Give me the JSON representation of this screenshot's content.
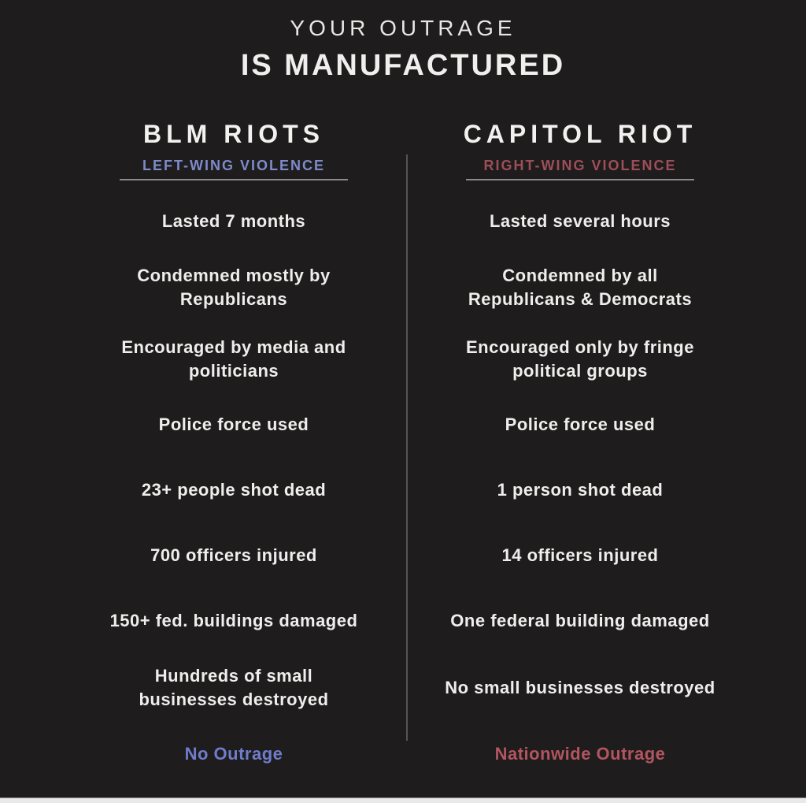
{
  "title": {
    "line1": "YOUR OUTRAGE",
    "line2": "IS MANUFACTURED"
  },
  "columns": {
    "left": {
      "header": "BLM RIOTS",
      "subtitle": "LEFT-WING VIOLENCE",
      "rows": [
        "Lasted 7 months",
        "Condemned mostly by\nRepublicans",
        "Encouraged by media and\npoliticians",
        "Police force used",
        "23+ people shot dead",
        "700 officers injured",
        "150+ fed. buildings damaged",
        "Hundreds of small\nbusinesses destroyed"
      ],
      "footer": "No Outrage"
    },
    "right": {
      "header": "CAPITOL RIOT",
      "subtitle": "RIGHT-WING VIOLENCE",
      "rows": [
        "Lasted several hours",
        "Condemned by all\nRepublicans & Democrats",
        "Encouraged only by fringe\npolitical groups",
        "Police force used",
        "1 person shot dead",
        "14 officers injured",
        "One federal building damaged",
        "No small businesses destroyed"
      ],
      "footer": "Nationwide Outrage"
    }
  },
  "colors": {
    "background": "#1e1c1c",
    "text": "#efeeec",
    "left_accent": "#7e8bca",
    "left_footer_accent": "#6f7ccc",
    "right_accent": "#9d4e59",
    "right_footer_accent": "#b25560",
    "divider": "#555555",
    "underline": "#8a8a8a"
  }
}
